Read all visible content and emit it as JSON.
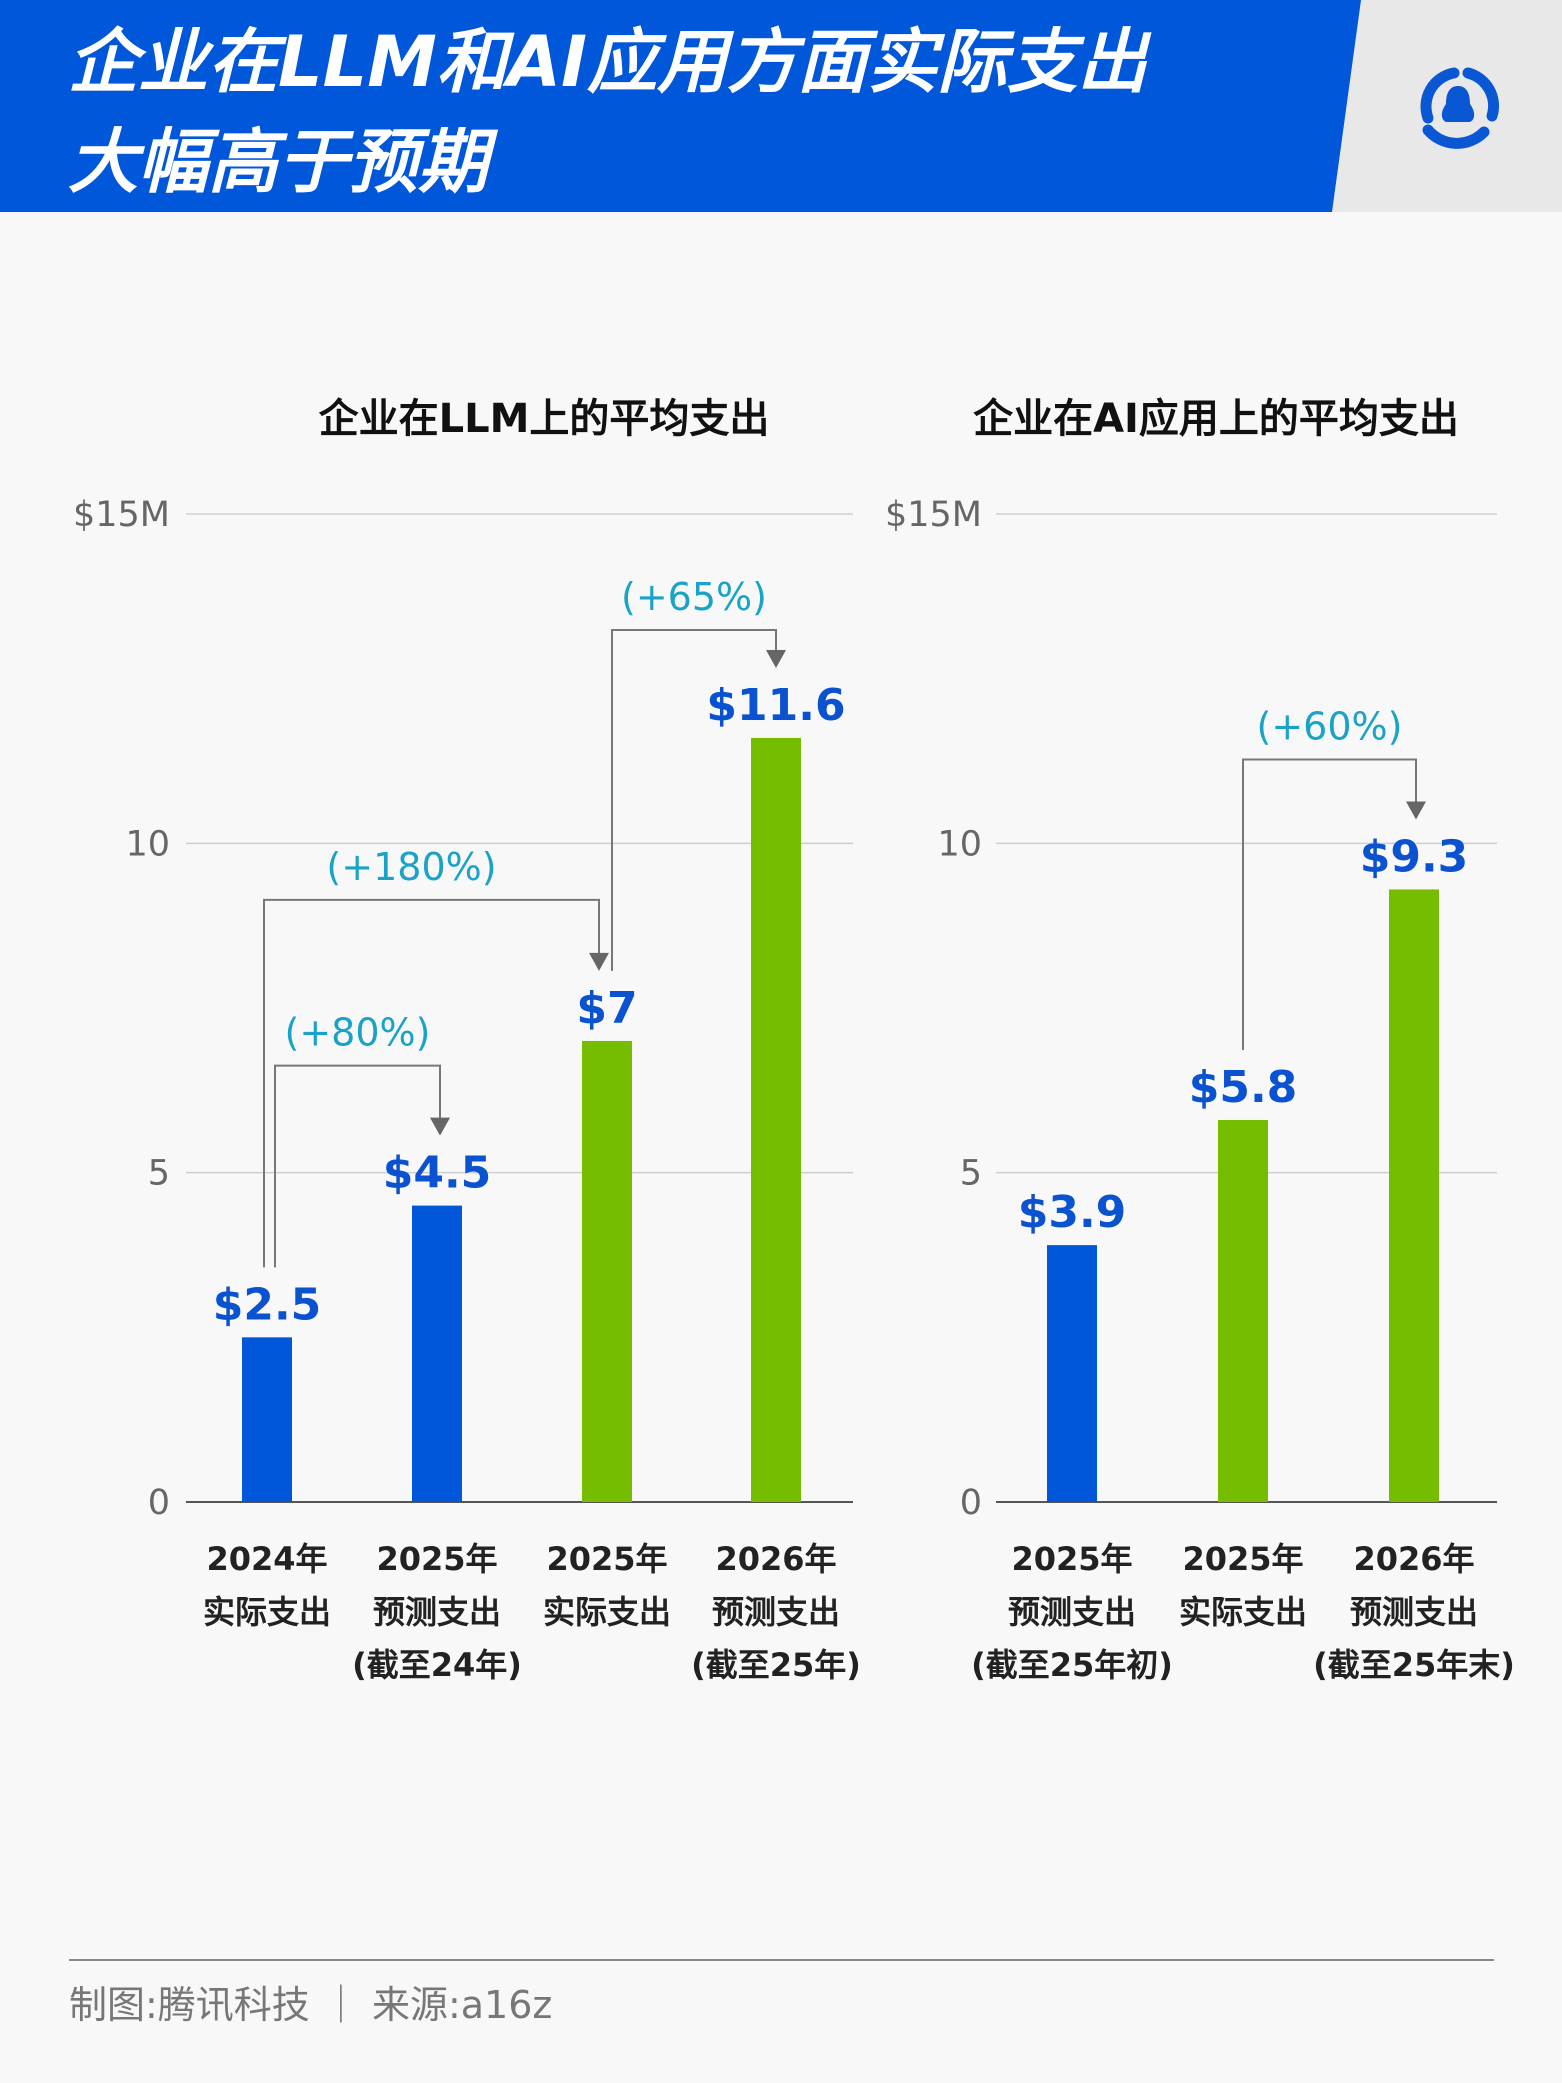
{
  "header": {
    "title_line1": "企业在LLM和AI应用方面实际支出",
    "title_line2": "大幅高于预期",
    "logo": "tencent-penguin-logo",
    "colors": {
      "banner": "#0057d9",
      "logo_bg": "#e8e8e8"
    }
  },
  "colors": {
    "forecast": "#0057d9",
    "actual": "#76bd00",
    "growth_label": "#1aa3c6",
    "value_label": "#0a52d0"
  },
  "chart_data": [
    {
      "type": "bar",
      "title": "企业在LLM上的平均支出",
      "ylim": [
        0,
        15
      ],
      "yticks": [
        "0",
        "5",
        "10",
        "$15M"
      ],
      "grid": true,
      "categories": [
        [
          "2024年",
          "实际支出",
          ""
        ],
        [
          "2025年",
          "预测支出",
          "(截至24年)"
        ],
        [
          "2025年",
          "实际支出",
          ""
        ],
        [
          "2026年",
          "预测支出",
          "(截至25年)"
        ]
      ],
      "values": [
        2.5,
        4.5,
        7,
        11.6
      ],
      "value_labels": [
        "$2.5",
        "$4.5",
        "$7",
        "$11.6"
      ],
      "bar_colors": [
        "#0057d9",
        "#0057d9",
        "#76bd00",
        "#76bd00"
      ],
      "annotations": [
        {
          "from": 0,
          "to": 1,
          "label": "(+80%)"
        },
        {
          "from": 0,
          "to": 2,
          "label": "(+180%)"
        },
        {
          "from": 2,
          "to": 3,
          "label": "(+65%)"
        }
      ]
    },
    {
      "type": "bar",
      "title": "企业在AI应用上的平均支出",
      "ylim": [
        0,
        15
      ],
      "yticks": [
        "0",
        "5",
        "10",
        "$15M"
      ],
      "grid": true,
      "categories": [
        [
          "2025年",
          "预测支出",
          "(截至25年初)"
        ],
        [
          "2025年",
          "实际支出",
          ""
        ],
        [
          "2026年",
          "预测支出",
          "(截至25年末)"
        ]
      ],
      "values": [
        3.9,
        5.8,
        9.3
      ],
      "value_labels": [
        "$3.9",
        "$5.8",
        "$9.3"
      ],
      "bar_colors": [
        "#0057d9",
        "#76bd00",
        "#76bd00"
      ],
      "annotations": [
        {
          "from": 1,
          "to": 2,
          "label": "(+60%)"
        }
      ]
    }
  ],
  "footer": {
    "text": "制图:腾讯科技 ｜ 来源:a16z"
  }
}
